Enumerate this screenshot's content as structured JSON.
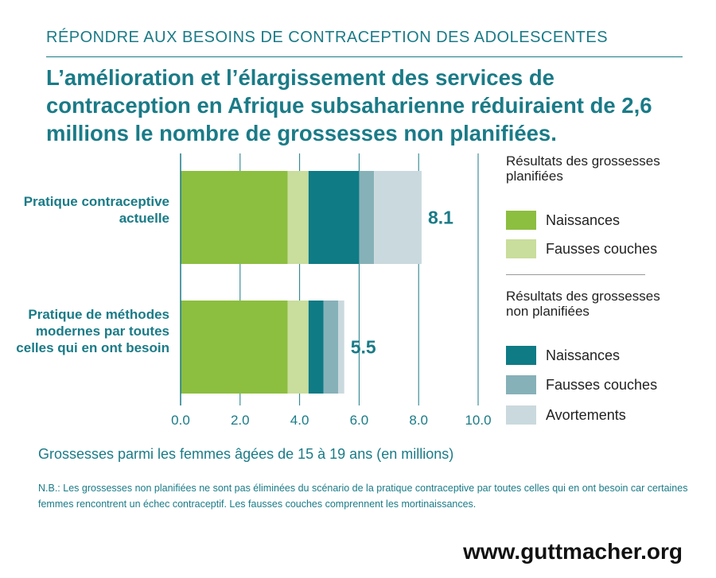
{
  "header": {
    "kicker": "RÉPONDRE AUX BESOINS DE CONTRACEPTION DES ADOLESCENTES",
    "title": "L’amélioration et l’élargissement des services de contraception en Afrique subsaharienne réduiraient de 2,6 millions le nombre de grossesses non planifiées."
  },
  "legend": {
    "planned_heading": "Résultats des grossesses planifiées",
    "planned_items": [
      {
        "label": "Naissances",
        "color": "#8cbe3f"
      },
      {
        "label": "Fausses couches",
        "color": "#c9dd9c"
      }
    ],
    "unplanned_heading": "Résultats des grossesses non planifiées",
    "unplanned_items": [
      {
        "label": "Naissances",
        "color": "#0e7b85"
      },
      {
        "label": "Fausses couches",
        "color": "#86b1b8"
      },
      {
        "label": "Avortements",
        "color": "#cad9dd"
      }
    ]
  },
  "chart_data": {
    "type": "bar",
    "orientation": "horizontal",
    "stacked": true,
    "categories": [
      "Pratique contraceptive actuelle",
      "Pratique de méthodes modernes par toutes celles qui en ont besoin"
    ],
    "series": [
      {
        "name": "Naissances (planifiées)",
        "values": [
          3.6,
          3.6
        ],
        "color": "#8cbe3f"
      },
      {
        "name": "Fausses couches (planifiées)",
        "values": [
          0.7,
          0.7
        ],
        "color": "#c9dd9c"
      },
      {
        "name": "Naissances (non planifiées)",
        "values": [
          1.7,
          0.5
        ],
        "color": "#0e7b85"
      },
      {
        "name": "Fausses couches (non planifiées)",
        "values": [
          0.5,
          0.5
        ],
        "color": "#86b1b8"
      },
      {
        "name": "Avortements (non planifiées)",
        "values": [
          1.6,
          0.2
        ],
        "color": "#cad9dd"
      }
    ],
    "totals": [
      "8.1",
      "5.5"
    ],
    "xlim": [
      0,
      10
    ],
    "xticks": [
      "0.0",
      "2.0",
      "4.0",
      "6.0",
      "8.0",
      "10.0"
    ],
    "xlabel": "Grossesses parmi les femmes âgées de 15 à 19 ans (en millions)",
    "grid": true,
    "legend_position": "right"
  },
  "footer": {
    "note": "N.B.: Les grossesses non planifiées ne sont pas éliminées du scénario de la pratique contraceptive par toutes celles qui en ont besoin car certaines femmes rencontrent un échec contraceptif. Les fausses couches comprennent les mortinaissances.",
    "url": "www.guttmacher.org"
  }
}
